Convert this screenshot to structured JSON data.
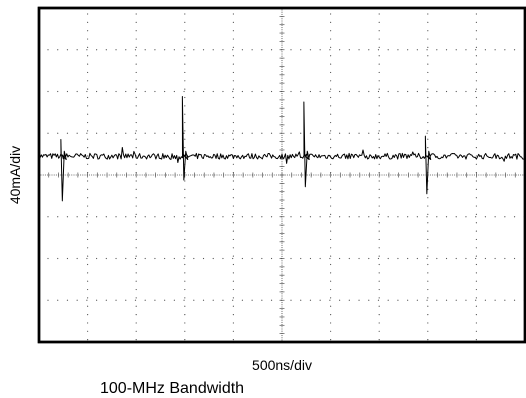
{
  "chart_data": {
    "type": "line",
    "title": "",
    "xlabel": "500ns/div",
    "ylabel": "40mA/div",
    "caption": "100-MHz Bandwidth",
    "x_divisions": 10,
    "y_divisions": 8,
    "xlim": [
      0,
      10
    ],
    "ylim": [
      -4,
      4
    ],
    "grid": true,
    "colors": {
      "trace": "#000000",
      "grid": "#555555",
      "frame": "#000000"
    },
    "series": [
      {
        "baseline": 0.45,
        "noise_amplitude": 0.07,
        "spikes": [
          {
            "x": 0.45,
            "up": 0.85,
            "down": -0.62
          },
          {
            "x": 2.95,
            "up": 1.88,
            "down": -0.12
          },
          {
            "x": 5.45,
            "up": 1.75,
            "down": -0.28
          },
          {
            "x": 7.95,
            "up": 0.93,
            "down": -0.45
          }
        ]
      }
    ]
  }
}
